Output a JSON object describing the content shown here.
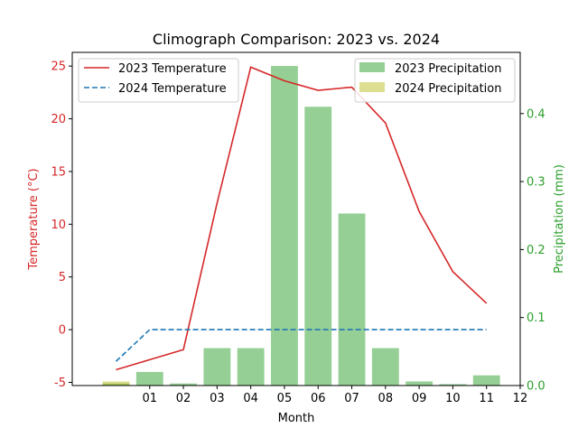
{
  "chart_data": {
    "type": "bar+line",
    "title": "Climograph Comparison: 2023 vs. 2024",
    "xlabel": "Month",
    "ylabel_left": "Temperature (°C)",
    "ylabel_right": "Precipitation (mm)",
    "x_positions": [
      0,
      1,
      2,
      3,
      4,
      5,
      6,
      7,
      8,
      9,
      10,
      11,
      12
    ],
    "x_tick_positions": [
      1,
      2,
      3,
      4,
      5,
      6,
      7,
      8,
      9,
      10,
      11,
      12
    ],
    "x_tick_labels": [
      "01",
      "02",
      "03",
      "04",
      "05",
      "06",
      "07",
      "08",
      "09",
      "10",
      "11",
      "12"
    ],
    "xlim": [
      -1.3,
      12
    ],
    "ylim_left": [
      -5.3,
      26.3
    ],
    "ylim_right": [
      0,
      0.49
    ],
    "yticks_left": [
      -5,
      0,
      5,
      10,
      15,
      20,
      25
    ],
    "yticks_right": [
      0.0,
      0.1,
      0.2,
      0.3,
      0.4
    ],
    "ytick_labels_right": [
      "0.0",
      "0.1",
      "0.2",
      "0.3",
      "0.4"
    ],
    "colors": {
      "temp_2023": "#d62728",
      "temp_2024": "#1f77b4",
      "precip_2023": "#2ca02c",
      "precip_2024": "#bcbd22",
      "left_axis_label": "#d62728",
      "right_axis_label": "#2ca02c"
    },
    "series": [
      {
        "name": "2023 Temperature",
        "kind": "line",
        "axis": "left",
        "style": "solid",
        "x": [
          0,
          2,
          3,
          4,
          5,
          6,
          7,
          8,
          9,
          10,
          11
        ],
        "values": [
          -3.8,
          -1.9,
          12.0,
          24.9,
          23.6,
          22.7,
          23.0,
          19.6,
          11.2,
          5.5,
          2.5
        ]
      },
      {
        "name": "2024 Temperature",
        "kind": "line",
        "axis": "left",
        "style": "dashed",
        "x": [
          0,
          1,
          2,
          3,
          4,
          5,
          6,
          7,
          8,
          9,
          10,
          11
        ],
        "values": [
          -3.0,
          0,
          0,
          0,
          0,
          0,
          0,
          0,
          0,
          0,
          0,
          0
        ]
      },
      {
        "name": "2023 Precipitation",
        "kind": "bar",
        "axis": "right",
        "x": [
          0,
          1,
          2,
          3,
          4,
          5,
          6,
          7,
          8,
          9,
          10,
          11
        ],
        "values": [
          0.003,
          0.02,
          0.003,
          0.055,
          0.055,
          0.47,
          0.41,
          0.253,
          0.055,
          0.006,
          0.002,
          0.015
        ]
      },
      {
        "name": "2024 Precipitation",
        "kind": "bar",
        "axis": "right",
        "x": [
          0
        ],
        "values": [
          0.006
        ]
      }
    ],
    "legends": {
      "left": {
        "placement": "upper-left",
        "entries": [
          "2023 Temperature",
          "2024 Temperature"
        ]
      },
      "right": {
        "placement": "upper-right",
        "entries": [
          "2023 Precipitation",
          "2024 Precipitation"
        ]
      }
    },
    "grid": false
  }
}
